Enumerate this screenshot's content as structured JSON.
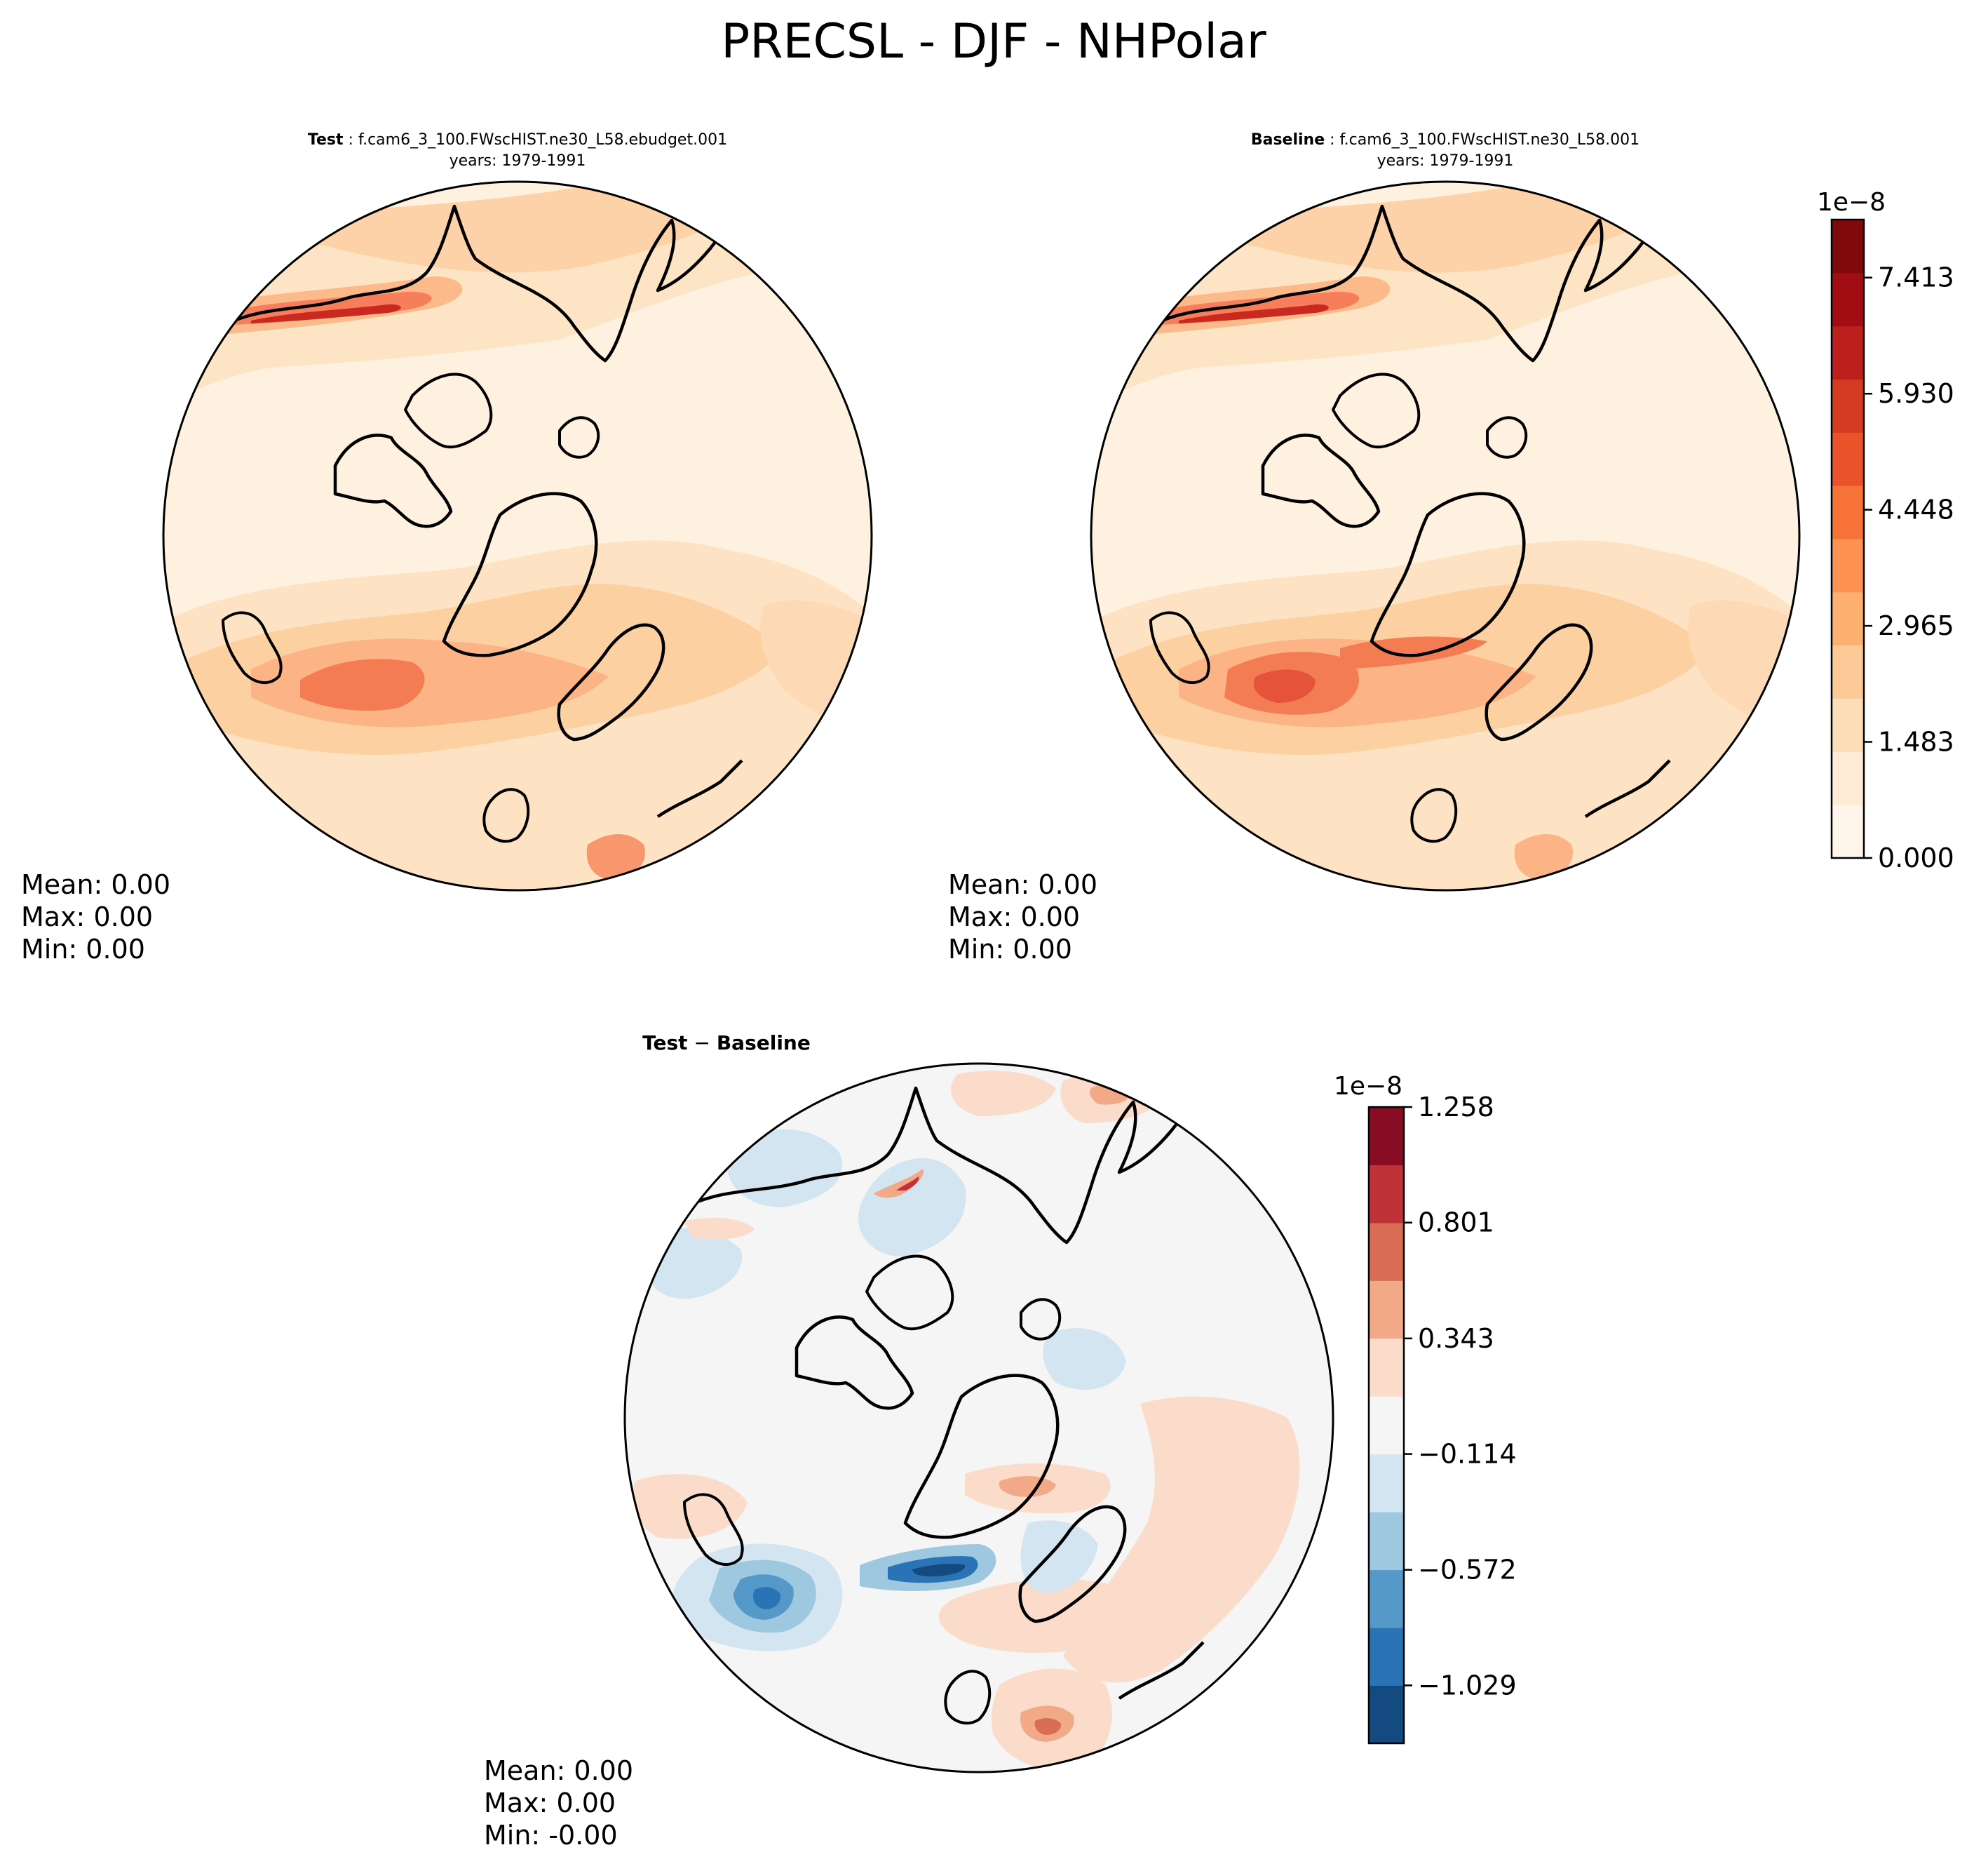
{
  "suptitle": "PRECSL - DJF - NHPolar",
  "panels": [
    {
      "id": "test",
      "title_bold": "Test",
      "title_sep": " : ",
      "title_rest": "f.cam6_3_100.FWscHIST.ne30_L58.ebudget.001",
      "subtitle": "years: 1979-1991",
      "stats": {
        "mean": "Mean:  0.00",
        "max": "Max:  0.00",
        "min": "Min:  0.00"
      }
    },
    {
      "id": "baseline",
      "title_bold": "Baseline",
      "title_sep": " : ",
      "title_rest": "f.cam6_3_100.FWscHIST.ne30_L58.001",
      "subtitle": "years: 1979-1991",
      "stats": {
        "mean": "Mean:  0.00",
        "max": "Max:  0.00",
        "min": "Min:  0.00"
      }
    },
    {
      "id": "diff",
      "title_bold_a": "Test",
      "title_op": " − ",
      "title_bold_b": "Baseline",
      "stats": {
        "mean": "Mean:  0.00",
        "max": "Max:  0.00",
        "min": "Min: -0.00"
      }
    }
  ],
  "colorbars": {
    "main": {
      "exponent": "1e−8",
      "tick_labels": [
        "0.000",
        "1.483",
        "2.965",
        "4.448",
        "5.930",
        "7.413"
      ],
      "tick_values": [
        0.0,
        1.483,
        2.965,
        4.448,
        5.93,
        7.413
      ],
      "range": [
        0.0,
        8.154
      ],
      "colors": [
        "#fff5eb",
        "#feebd6",
        "#fddcb8",
        "#fdc997",
        "#fdb06f",
        "#fd9253",
        "#f67237",
        "#e8532a",
        "#d53a23",
        "#bd1f1c",
        "#a20d13",
        "#800a0b"
      ]
    },
    "diff": {
      "exponent": "1e−8",
      "tick_labels": [
        "1.258",
        "0.801",
        "0.343",
        "−0.114",
        "−0.572",
        "−1.029"
      ],
      "tick_values": [
        1.258,
        0.801,
        0.343,
        -0.114,
        -0.572,
        -1.029
      ],
      "range": [
        -1.258,
        1.258
      ],
      "colors": [
        "#134a7f",
        "#2a73b5",
        "#5599c9",
        "#9dc8e0",
        "#d3e5f0",
        "#f5f5f5",
        "#fbdccb",
        "#f2a988",
        "#d86c55",
        "#bf3338",
        "#880c24"
      ]
    }
  },
  "chart_data": [
    {
      "type": "heatmap",
      "title": "Test : f.cam6_3_100.FWscHIST.ne30_L58.ebudget.001",
      "subtitle": "years: 1979-1991",
      "projection": "north-polar-stereographic",
      "colorbar_ticks": [
        0.0,
        1.483e-08,
        2.965e-08,
        4.448e-08,
        5.93e-08,
        7.413e-08
      ],
      "stats": {
        "mean": 0.0,
        "max": 0.0,
        "min": 0.0
      }
    },
    {
      "type": "heatmap",
      "title": "Baseline : f.cam6_3_100.FWscHIST.ne30_L58.001",
      "subtitle": "years: 1979-1991",
      "projection": "north-polar-stereographic",
      "colorbar_ticks": [
        0.0,
        1.483e-08,
        2.965e-08,
        4.448e-08,
        5.93e-08,
        7.413e-08
      ],
      "stats": {
        "mean": 0.0,
        "max": 0.0,
        "min": 0.0
      }
    },
    {
      "type": "heatmap",
      "title": "Test − Baseline",
      "projection": "north-polar-stereographic",
      "colorbar_ticks": [
        1.258e-08,
        8.01e-09,
        3.43e-09,
        -1.14e-09,
        -5.72e-09,
        -1.029e-08
      ],
      "stats": {
        "mean": 0.0,
        "max": 0.0,
        "min": -0.0
      }
    }
  ]
}
